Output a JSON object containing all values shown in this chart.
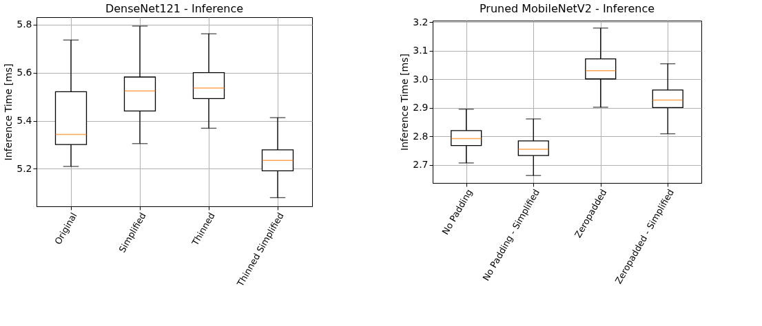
{
  "chart_data": [
    {
      "type": "box",
      "title": "DenseNet121 - Inference",
      "ylabel": "Inference Time [ms]",
      "categories": [
        "Original",
        "Simplified",
        "Thinned",
        "Thinned Simplified"
      ],
      "boxes": [
        {
          "low": 5.21,
          "q1": 5.301,
          "median": 5.343,
          "q3": 5.521,
          "high": 5.736
        },
        {
          "low": 5.305,
          "q1": 5.441,
          "median": 5.524,
          "q3": 5.582,
          "high": 5.794
        },
        {
          "low": 5.369,
          "q1": 5.492,
          "median": 5.536,
          "q3": 5.6,
          "high": 5.762
        },
        {
          "low": 5.08,
          "q1": 5.192,
          "median": 5.235,
          "q3": 5.279,
          "high": 5.413
        }
      ],
      "ylim": [
        5.044,
        5.831
      ],
      "yticks": [
        5.2,
        5.4,
        5.6,
        5.8
      ],
      "grid": true
    },
    {
      "type": "box",
      "title": "Pruned MobileNetV2 - Inference",
      "ylabel": "Inference Time [ms]",
      "categories": [
        "No Padding",
        "No Padding - Simplified",
        "Zeropadded",
        "Zeropadded - Simplified"
      ],
      "boxes": [
        {
          "low": 2.707,
          "q1": 2.768,
          "median": 2.792,
          "q3": 2.82,
          "high": 2.895
        },
        {
          "low": 2.663,
          "q1": 2.733,
          "median": 2.755,
          "q3": 2.784,
          "high": 2.861
        },
        {
          "low": 2.902,
          "q1": 3.001,
          "median": 3.03,
          "q3": 3.071,
          "high": 3.179
        },
        {
          "low": 2.809,
          "q1": 2.901,
          "median": 2.927,
          "q3": 2.962,
          "high": 3.054
        }
      ],
      "ylim": [
        2.637,
        3.205
      ],
      "yticks": [
        2.7,
        2.8,
        2.9,
        {
          "value": 3.0,
          "label": "3.0"
        },
        3.1,
        3.2
      ],
      "grid": true
    }
  ]
}
